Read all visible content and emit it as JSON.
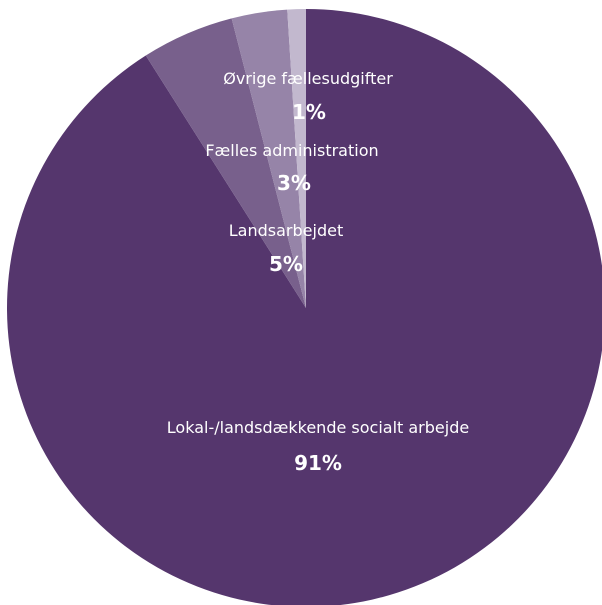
{
  "chart_data": {
    "type": "pie",
    "title": "",
    "slices": [
      {
        "label": "Lokal-/landsdækkende socialt arbejde",
        "value_label": "91%",
        "value": 91,
        "color": "#55366d"
      },
      {
        "label": "Landsarbejdet",
        "value_label": "5%",
        "value": 5,
        "color": "#78608c"
      },
      {
        "label": "Fælles administration",
        "value_label": "3%",
        "value": 3,
        "color": "#9684a8"
      },
      {
        "label": "Øvrige fællesudgifter",
        "value_label": "1%",
        "value": 1,
        "color": "#c2b8ce"
      }
    ]
  }
}
